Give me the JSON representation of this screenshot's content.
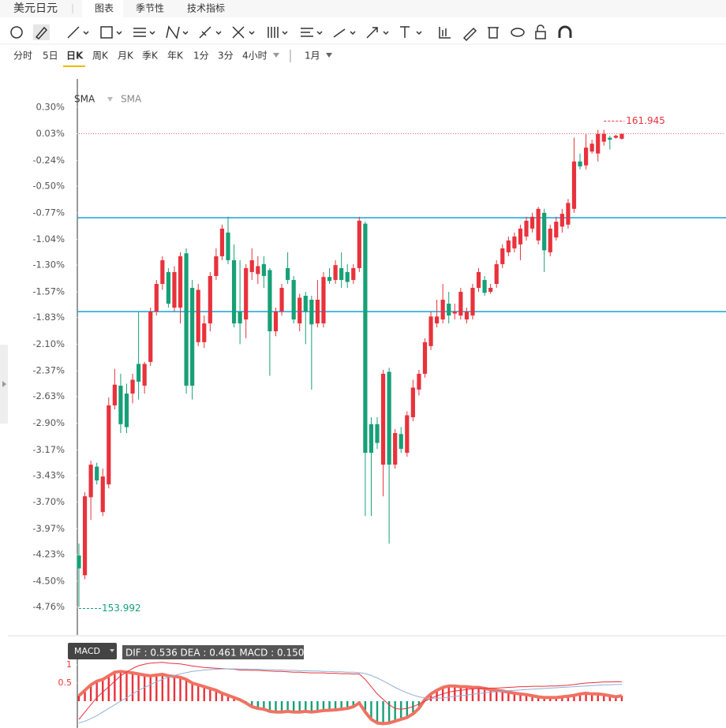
{
  "ui": {
    "symbol": "美元日元",
    "tabs": [
      "图表",
      "季节性",
      "技术指标"
    ],
    "periods": [
      "分时",
      "5日",
      "日K",
      "周K",
      "月K",
      "季K",
      "年K",
      "1分",
      "3分",
      "4小时"
    ],
    "range": "1月"
  },
  "chart_data": [
    {
      "type": "candlestick",
      "indicators": [
        "SMA",
        "SMA"
      ],
      "up_color": "#e8323c",
      "down_color": "#17a077",
      "ylim": [
        -5.02,
        0.57
      ],
      "yticks": [
        {
          "value": 0.3,
          "label": "0.30%"
        },
        {
          "value": 0.03,
          "label": "0.03%"
        },
        {
          "value": -0.24,
          "label": "-0.24%"
        },
        {
          "value": -0.5,
          "label": "-0.50%"
        },
        {
          "value": -0.77,
          "label": "-0.77%"
        },
        {
          "value": -1.04,
          "label": "-1.04%"
        },
        {
          "value": -1.3,
          "label": "-1.30%"
        },
        {
          "value": -1.57,
          "label": "-1.57%"
        },
        {
          "value": -1.83,
          "label": "-1.83%"
        },
        {
          "value": -2.1,
          "label": "-2.10%"
        },
        {
          "value": -2.37,
          "label": "-2.37%"
        },
        {
          "value": -2.63,
          "label": "-2.63%"
        },
        {
          "value": -2.9,
          "label": "-2.90%"
        },
        {
          "value": -3.17,
          "label": "-3.17%"
        },
        {
          "value": -3.43,
          "label": "-3.43%"
        },
        {
          "value": -3.7,
          "label": "-3.70%"
        },
        {
          "value": -3.97,
          "label": "-3.97%"
        },
        {
          "value": -4.23,
          "label": "-4.23%"
        },
        {
          "value": -4.5,
          "label": "-4.50%"
        },
        {
          "value": -4.76,
          "label": "-4.76%"
        }
      ],
      "grid": false,
      "hlines": [
        -0.82,
        -1.77
      ],
      "hline_color": "#29a8e0",
      "last_line_color": "#e8323c",
      "high_label": "161.945",
      "low_label": "153.992",
      "open": [
        -4.24,
        -4.44,
        -3.65,
        -3.34,
        -3.8,
        -3.52,
        -2.72,
        -2.52,
        -2.6,
        -2.6,
        -2.3,
        -2.52,
        -2.28,
        -1.77,
        -1.49,
        -1.37,
        -1.73,
        -1.73,
        -1.18,
        -1.53,
        -2.08,
        -2.08,
        -1.89,
        -1.41,
        -1.21,
        -0.97,
        -1.25,
        -1.77,
        -1.85,
        -1.37,
        -1.39,
        -1.29,
        -1.35,
        -1.97,
        -1.77,
        -1.33,
        -1.45,
        -1.89,
        -1.61,
        -1.65,
        -1.89,
        -1.89,
        -1.42,
        -1.45,
        -1.33,
        -1.37,
        -1.45,
        -1.33,
        -0.88,
        -2.91,
        -2.91,
        -3.32,
        -2.38,
        -3.32,
        -3.01,
        -3.2,
        -2.84,
        -2.56,
        -2.4,
        -2.12,
        -1.89,
        -1.85,
        -1.69,
        -1.79,
        -1.81,
        -1.85,
        -1.81,
        -1.53,
        -1.45,
        -1.57,
        -1.49,
        -1.29,
        -1.17,
        -1.13,
        -1.09,
        -1.01,
        -0.93,
        -1.05,
        -0.77,
        -1.17,
        -1.02,
        -0.91,
        -0.89,
        -0.73,
        -0.25,
        -0.29,
        -0.15,
        -0.17,
        -0.05,
        -0.01,
        -0.01,
        -0.02
      ],
      "high": [
        -4.12,
        -3.6,
        -3.28,
        -3.3,
        -3.36,
        -2.64,
        -2.35,
        -2.4,
        -2.5,
        -2.4,
        -1.77,
        -2.28,
        -1.73,
        -1.45,
        -1.21,
        -1.33,
        -1.31,
        -1.17,
        -1.13,
        -1.45,
        -1.49,
        -1.81,
        -1.37,
        -1.13,
        -0.89,
        -0.81,
        -1.09,
        -1.25,
        -1.29,
        -1.13,
        -1.21,
        -1.21,
        -1.33,
        -1.73,
        -1.49,
        -1.17,
        -1.41,
        -1.59,
        -1.57,
        -1.61,
        -1.45,
        -1.37,
        -1.33,
        -1.25,
        -1.17,
        -1.29,
        -1.29,
        -0.81,
        -0.86,
        -2.84,
        -2.84,
        -2.36,
        -2.34,
        -2.96,
        -2.94,
        -2.78,
        -2.46,
        -2.36,
        -2.04,
        -1.77,
        -1.65,
        -1.49,
        -1.57,
        -1.69,
        -1.53,
        -1.73,
        -1.49,
        -1.33,
        -1.41,
        -1.49,
        -1.25,
        -1.09,
        -1.01,
        -0.97,
        -0.89,
        -0.81,
        -0.77,
        -0.71,
        -0.73,
        -0.89,
        -0.81,
        -0.73,
        -0.63,
        -0.01,
        -0.17,
        0.03,
        -0.03,
        0.07,
        0.07,
        0.01,
        0.02,
        0.03
      ],
      "low": [
        -4.76,
        -4.48,
        -3.88,
        -3.52,
        -3.84,
        -3.56,
        -2.76,
        -3.0,
        -3.0,
        -2.7,
        -2.66,
        -2.6,
        -2.32,
        -1.81,
        -1.55,
        -1.73,
        -1.77,
        -1.89,
        -2.6,
        -2.66,
        -2.12,
        -2.14,
        -1.97,
        -1.45,
        -1.25,
        -1.29,
        -1.93,
        -2.1,
        -2.04,
        -1.45,
        -1.49,
        -1.53,
        -2.42,
        -2.02,
        -1.81,
        -1.49,
        -1.89,
        -1.97,
        -2.1,
        -2.56,
        -1.93,
        -1.93,
        -1.49,
        -1.49,
        -1.53,
        -1.53,
        -1.49,
        -1.37,
        -3.84,
        -3.84,
        -3.16,
        -3.64,
        -4.12,
        -3.36,
        -3.2,
        -3.24,
        -2.88,
        -2.62,
        -2.44,
        -2.16,
        -1.93,
        -1.89,
        -1.89,
        -1.85,
        -1.85,
        -1.89,
        -1.85,
        -1.57,
        -1.61,
        -1.59,
        -1.53,
        -1.33,
        -1.21,
        -1.17,
        -1.25,
        -1.05,
        -0.97,
        -1.09,
        -1.37,
        -1.21,
        -1.05,
        -0.97,
        -0.93,
        -0.77,
        -0.33,
        -0.33,
        -0.17,
        -0.25,
        -0.09,
        -0.13,
        -0.02,
        -0.03
      ],
      "close": [
        -4.37,
        -3.64,
        -3.32,
        -3.48,
        -3.44,
        -2.72,
        -2.51,
        -2.91,
        -2.94,
        -2.46,
        -2.48,
        -2.3,
        -1.77,
        -1.49,
        -1.25,
        -1.69,
        -1.37,
        -1.21,
        -2.52,
        -2.52,
        -1.55,
        -1.89,
        -1.41,
        -1.21,
        -0.93,
        -1.25,
        -1.89,
        -1.89,
        -1.33,
        -1.25,
        -1.31,
        -1.41,
        -1.97,
        -1.77,
        -1.53,
        -1.45,
        -1.85,
        -1.63,
        -1.77,
        -1.9,
        -1.65,
        -1.42,
        -1.46,
        -1.3,
        -1.45,
        -1.47,
        -1.33,
        -0.85,
        -3.2,
        -3.2,
        -3.1,
        -2.4,
        -3.32,
        -3.0,
        -3.16,
        -2.82,
        -2.54,
        -2.4,
        -2.08,
        -1.82,
        -1.82,
        -1.65,
        -1.81,
        -1.77,
        -1.57,
        -1.77,
        -1.53,
        -1.37,
        -1.58,
        -1.53,
        -1.29,
        -1.13,
        -1.05,
        -1.01,
        -0.93,
        -0.85,
        -0.81,
        -0.73,
        -1.15,
        -0.93,
        -0.86,
        -0.78,
        -0.67,
        -0.25,
        -0.3,
        -0.11,
        -0.07,
        0.03,
        0.03,
        -0.03,
        0.01,
        0.03
      ]
    },
    {
      "type": "macd",
      "indicator": "MACD",
      "readout": "DIF : 0.536  DEA : 0.461  MACD : 0.150",
      "ylim": [
        -0.74,
        1.61
      ],
      "yticks": [
        1,
        0.5
      ],
      "tick_color": "#e8323c",
      "histogram": {
        "up_color": "#e8323c",
        "down_color": "#17a077",
        "line_color": "#f07262",
        "values": [
          0.15,
          0.3,
          0.45,
          0.55,
          0.6,
          0.7,
          0.8,
          0.82,
          0.8,
          0.78,
          0.75,
          0.72,
          0.7,
          0.72,
          0.74,
          0.7,
          0.68,
          0.66,
          0.6,
          0.5,
          0.45,
          0.4,
          0.35,
          0.3,
          0.22,
          0.16,
          0.1,
          0.04,
          -0.05,
          -0.15,
          -0.2,
          -0.22,
          -0.28,
          -0.3,
          -0.3,
          -0.28,
          -0.3,
          -0.3,
          -0.28,
          -0.3,
          -0.28,
          -0.26,
          -0.25,
          -0.24,
          -0.22,
          -0.2,
          -0.15,
          -0.05,
          -0.3,
          -0.5,
          -0.6,
          -0.62,
          -0.6,
          -0.55,
          -0.5,
          -0.45,
          -0.35,
          -0.2,
          0.05,
          0.2,
          0.3,
          0.38,
          0.42,
          0.42,
          0.4,
          0.4,
          0.38,
          0.38,
          0.35,
          0.32,
          0.3,
          0.28,
          0.25,
          0.22,
          0.2,
          0.18,
          0.15,
          0.12,
          0.1,
          0.1,
          0.1,
          0.12,
          0.14,
          0.16,
          0.2,
          0.22,
          0.2,
          0.2,
          0.18,
          0.15,
          0.12,
          0.15
        ]
      },
      "series": [
        {
          "color": "#e8323c",
          "values": [
            -0.5,
            -0.3,
            -0.1,
            0.1,
            0.25,
            0.4,
            0.55,
            0.7,
            0.8,
            0.9,
            0.98,
            1.02,
            1.05,
            1.06,
            1.07,
            1.05,
            1.04,
            1.03,
            1.0,
            0.97,
            0.95,
            0.93,
            0.92,
            0.91,
            0.9,
            0.89,
            0.88,
            0.86,
            0.86,
            0.85,
            0.85,
            0.84,
            0.83,
            0.82,
            0.82,
            0.81,
            0.8,
            0.8,
            0.79,
            0.78,
            0.78,
            0.78,
            0.77,
            0.77,
            0.76,
            0.76,
            0.75,
            0.75,
            0.6,
            0.4,
            0.2,
            0.05,
            -0.1,
            -0.2,
            -0.22,
            -0.2,
            -0.15,
            -0.08,
            0.0,
            0.08,
            0.15,
            0.2,
            0.25,
            0.28,
            0.3,
            0.32,
            0.34,
            0.35,
            0.35,
            0.36,
            0.36,
            0.37,
            0.38,
            0.39,
            0.4,
            0.4,
            0.41,
            0.41,
            0.41,
            0.42,
            0.42,
            0.43,
            0.44,
            0.46,
            0.48,
            0.5,
            0.51,
            0.52,
            0.53,
            0.53,
            0.54,
            0.536
          ]
        },
        {
          "color": "#8fb0d8",
          "values": [
            -0.6,
            -0.55,
            -0.48,
            -0.4,
            -0.3,
            -0.2,
            -0.1,
            0.0,
            0.1,
            0.2,
            0.3,
            0.38,
            0.46,
            0.53,
            0.6,
            0.66,
            0.71,
            0.75,
            0.79,
            0.82,
            0.84,
            0.86,
            0.87,
            0.88,
            0.89,
            0.89,
            0.89,
            0.89,
            0.89,
            0.88,
            0.88,
            0.87,
            0.87,
            0.86,
            0.86,
            0.85,
            0.85,
            0.84,
            0.84,
            0.83,
            0.83,
            0.82,
            0.82,
            0.81,
            0.81,
            0.8,
            0.8,
            0.79,
            0.76,
            0.71,
            0.64,
            0.56,
            0.47,
            0.38,
            0.3,
            0.23,
            0.17,
            0.12,
            0.09,
            0.08,
            0.08,
            0.09,
            0.11,
            0.13,
            0.15,
            0.17,
            0.19,
            0.21,
            0.23,
            0.25,
            0.26,
            0.28,
            0.29,
            0.3,
            0.31,
            0.32,
            0.33,
            0.34,
            0.35,
            0.36,
            0.37,
            0.38,
            0.39,
            0.4,
            0.41,
            0.42,
            0.43,
            0.44,
            0.45,
            0.45,
            0.46,
            0.461
          ]
        }
      ]
    }
  ]
}
